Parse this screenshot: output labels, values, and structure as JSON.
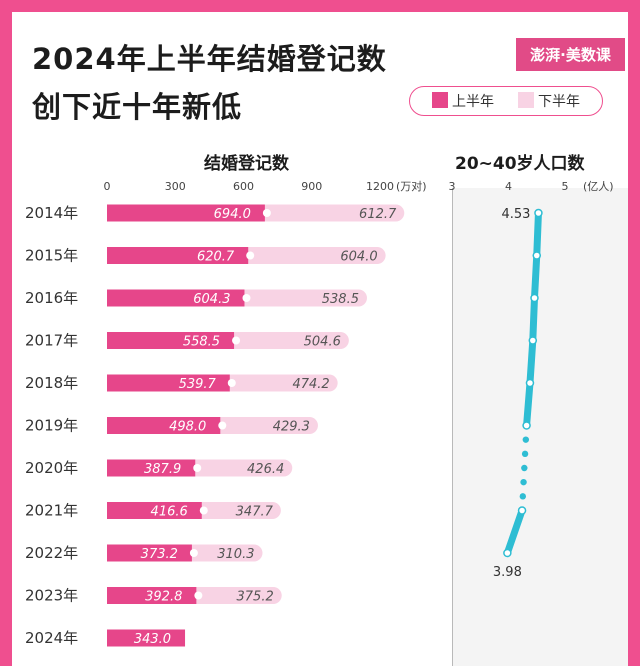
{
  "title_line1": "2024年上半年结婚登记数",
  "title_line2": "创下近十年新低",
  "logo_text": "澎湃·美数课",
  "legend": {
    "h1": "上半年",
    "h2": "下半年"
  },
  "colors": {
    "h1": "#e6468a",
    "h2": "#f8d3e4",
    "pop": "#2ebdd3",
    "frame": "#ef4f8f"
  },
  "chart_data": [
    {
      "type": "bar",
      "title": "结婚登记数",
      "unit": "(万对)",
      "stacked": true,
      "orientation": "horizontal",
      "categories": [
        "2014年",
        "2015年",
        "2016年",
        "2017年",
        "2018年",
        "2019年",
        "2020年",
        "2021年",
        "2022年",
        "2023年",
        "2024年"
      ],
      "series": [
        {
          "name": "上半年",
          "values": [
            694.0,
            620.7,
            604.3,
            558.5,
            539.7,
            498.0,
            387.9,
            416.6,
            373.2,
            392.8,
            343.0
          ]
        },
        {
          "name": "下半年",
          "values": [
            612.7,
            604.0,
            538.5,
            504.6,
            474.2,
            429.3,
            426.4,
            347.7,
            310.3,
            375.2,
            null
          ]
        }
      ],
      "xticks": [
        "0",
        "300",
        "600",
        "900",
        "1200"
      ],
      "xlim": [
        0,
        1300
      ]
    },
    {
      "type": "line",
      "title": "20~40岁人口数",
      "unit": "(亿人)",
      "xticks": [
        "3",
        "4",
        "5"
      ],
      "xlim": [
        3,
        5
      ],
      "categories": [
        "2014年",
        "2015年",
        "2016年",
        "2017年",
        "2018年",
        "2019年",
        "2020年",
        "2021年",
        "2022年"
      ],
      "values": [
        4.53,
        4.5,
        4.46,
        4.43,
        4.38,
        4.32,
        null,
        4.24,
        3.98
      ],
      "dotted_gap_after_index": 5,
      "annotations": [
        "4.53",
        "3.98"
      ]
    }
  ]
}
